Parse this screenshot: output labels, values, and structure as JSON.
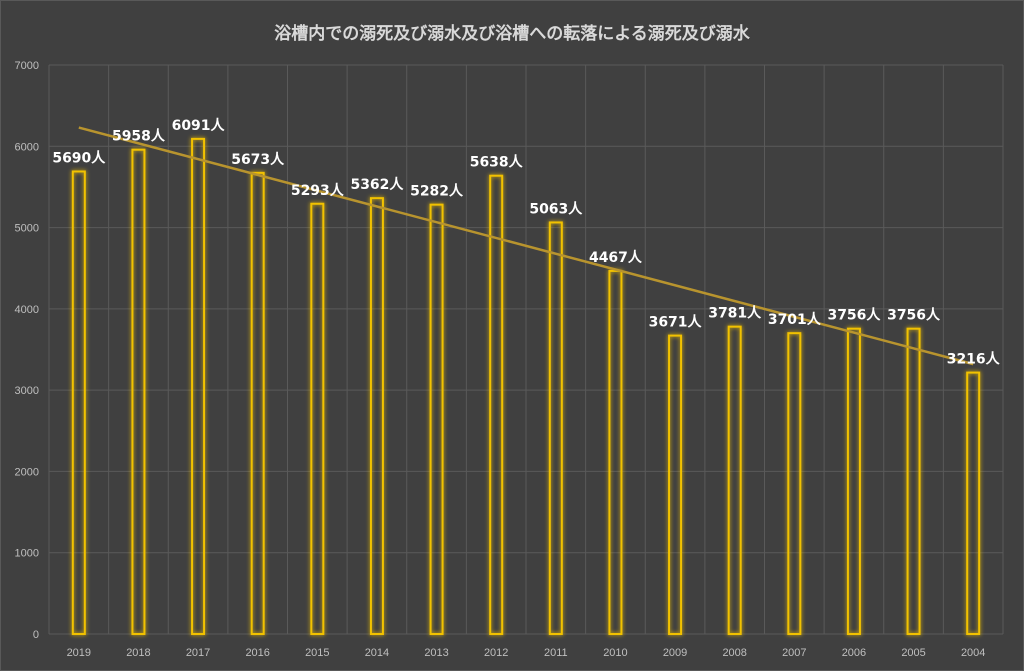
{
  "chart_data": {
    "type": "bar",
    "title": "浴槽内での溺死及び溺水及び浴槽への転落による溺死及び溺水",
    "categories": [
      "2019",
      "2018",
      "2017",
      "2016",
      "2015",
      "2014",
      "2013",
      "2012",
      "2011",
      "2010",
      "2009",
      "2008",
      "2007",
      "2006",
      "2005",
      "2004"
    ],
    "values": [
      5690,
      5958,
      6091,
      5673,
      5293,
      5362,
      5282,
      5638,
      5063,
      4467,
      3671,
      3781,
      3701,
      3756,
      3756,
      3216
    ],
    "data_labels": [
      "5690人",
      "5958人",
      "6091人",
      "5673人",
      "5293人",
      "5362人",
      "5282人",
      "5638人",
      "5063人",
      "4467人",
      "3671人",
      "3781人",
      "3701人",
      "3756人",
      "3756人",
      "3216人"
    ],
    "y_ticks": [
      "0",
      "1000",
      "2000",
      "3000",
      "4000",
      "5000",
      "6000",
      "7000"
    ],
    "ylim": [
      0,
      7000
    ],
    "grid": true,
    "legend": "none",
    "trendline": {
      "type": "linear",
      "start_value": 6230,
      "end_value": 3320
    },
    "colors": {
      "background": "#404040",
      "bar_outline": "#f2c200",
      "trendline": "#b8942e",
      "grid": "#5a5a5a",
      "text": "#ffffff"
    }
  }
}
